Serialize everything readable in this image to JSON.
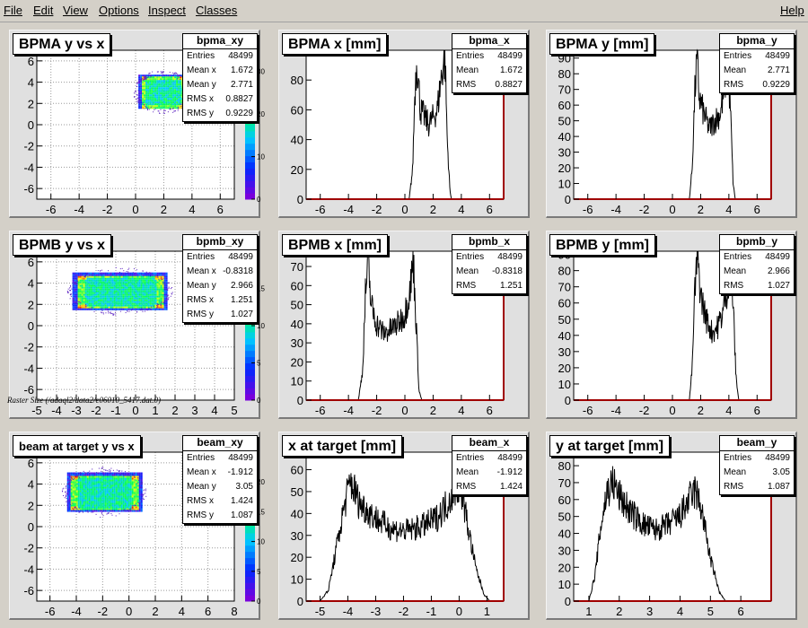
{
  "menu": {
    "left": [
      "File",
      "Edit",
      "View",
      "Options",
      "Inspect",
      "Classes"
    ],
    "right": "Help"
  },
  "raster_label": "Raster Size (/adaql2/data2/e06010_5417.dat.0)",
  "pads": [
    {
      "id": "p00",
      "title": "BPMA y vs x",
      "stats_name": "bpma_xy",
      "stats": [
        [
          "Entries",
          "48499"
        ],
        [
          "Mean x",
          "1.672"
        ],
        [
          "Mean y",
          "2.771"
        ],
        [
          "RMS x",
          "0.8827"
        ],
        [
          "RMS y",
          "0.9229"
        ]
      ],
      "chart_data": {
        "type": "heatmap",
        "x_ticks": [
          "-6",
          "-4",
          "-2",
          "0",
          "2",
          "4",
          "6"
        ],
        "y_ticks": [
          "-6",
          "-4",
          "-2",
          "0",
          "2",
          "4",
          "6"
        ],
        "z_ticks": [
          "0",
          "10",
          "20",
          "30"
        ],
        "xlim": [
          -7,
          7
        ],
        "ylim": [
          -7,
          7
        ],
        "zlim": [
          0,
          35
        ],
        "grid": true,
        "region": {
          "x": [
            0.2,
            3.6
          ],
          "y": [
            1.5,
            4.7
          ]
        }
      }
    },
    {
      "id": "p01",
      "title": "BPMA x [mm]",
      "stats_name": "bpma_x",
      "stats": [
        [
          "Entries",
          "48499"
        ],
        [
          "Mean",
          "1.672"
        ],
        [
          "RMS",
          "0.8827"
        ]
      ],
      "chart_data": {
        "type": "histogram",
        "x_ticks": [
          "-6",
          "-4",
          "-2",
          "0",
          "2",
          "4",
          "6"
        ],
        "y_ticks": [
          "0",
          "20",
          "40",
          "60",
          "80",
          "100"
        ],
        "xlim": [
          -7,
          7
        ],
        "ylim": [
          0,
          100
        ],
        "points": [
          [
            -7,
            0
          ],
          [
            0.3,
            0
          ],
          [
            0.55,
            20
          ],
          [
            0.7,
            70
          ],
          [
            0.85,
            95
          ],
          [
            0.95,
            80
          ],
          [
            1.1,
            60
          ],
          [
            1.4,
            55
          ],
          [
            1.7,
            50
          ],
          [
            2.0,
            55
          ],
          [
            2.3,
            60
          ],
          [
            2.55,
            80
          ],
          [
            2.7,
            90
          ],
          [
            2.85,
            95
          ],
          [
            3.0,
            40
          ],
          [
            3.2,
            5
          ],
          [
            3.3,
            0
          ],
          [
            7,
            0
          ]
        ]
      }
    },
    {
      "id": "p02",
      "title": "BPMA y [mm]",
      "stats_name": "bpma_y",
      "stats": [
        [
          "Entries",
          "48499"
        ],
        [
          "Mean",
          "2.771"
        ],
        [
          "RMS",
          "0.9229"
        ]
      ],
      "chart_data": {
        "type": "histogram",
        "x_ticks": [
          "-6",
          "-4",
          "-2",
          "0",
          "2",
          "4",
          "6"
        ],
        "y_ticks": [
          "0",
          "10",
          "20",
          "30",
          "40",
          "50",
          "60",
          "70",
          "80",
          "90"
        ],
        "xlim": [
          -7,
          7
        ],
        "ylim": [
          0,
          95
        ],
        "points": [
          [
            -7,
            0
          ],
          [
            1.2,
            0
          ],
          [
            1.4,
            20
          ],
          [
            1.6,
            70
          ],
          [
            1.75,
            90
          ],
          [
            1.9,
            65
          ],
          [
            2.2,
            55
          ],
          [
            2.6,
            45
          ],
          [
            3.0,
            50
          ],
          [
            3.4,
            55
          ],
          [
            3.7,
            70
          ],
          [
            3.9,
            85
          ],
          [
            4.1,
            60
          ],
          [
            4.3,
            10
          ],
          [
            4.45,
            0
          ],
          [
            7,
            0
          ]
        ]
      }
    },
    {
      "id": "p10",
      "title": "BPMB y vs x",
      "stats_name": "bpmb_xy",
      "stats": [
        [
          "Entries",
          "48499"
        ],
        [
          "Mean x",
          "-0.8318"
        ],
        [
          "Mean y",
          "2.966"
        ],
        [
          "RMS x",
          "1.251"
        ],
        [
          "RMS y",
          "1.027"
        ]
      ],
      "chart_data": {
        "type": "heatmap",
        "x_ticks": [
          "-5",
          "-4",
          "-3",
          "-2",
          "-1",
          "0",
          "1",
          "2",
          "3",
          "4",
          "5"
        ],
        "y_ticks": [
          "-6",
          "-4",
          "-2",
          "0",
          "2",
          "4",
          "6"
        ],
        "z_ticks": [
          "0",
          "5",
          "10",
          "15"
        ],
        "xlim": [
          -5,
          5
        ],
        "ylim": [
          -7,
          7
        ],
        "zlim": [
          0,
          20
        ],
        "grid": true,
        "region": {
          "x": [
            -3.2,
            1.6
          ],
          "y": [
            1.5,
            5.0
          ]
        }
      }
    },
    {
      "id": "p11",
      "title": "BPMB x [mm]",
      "stats_name": "bpmb_x",
      "stats": [
        [
          "Entries",
          "48499"
        ],
        [
          "Mean",
          "-0.8318"
        ],
        [
          "RMS",
          "1.251"
        ]
      ],
      "chart_data": {
        "type": "histogram",
        "x_ticks": [
          "-6",
          "-4",
          "-2",
          "0",
          "2",
          "4",
          "6"
        ],
        "y_ticks": [
          "0",
          "10",
          "20",
          "30",
          "40",
          "50",
          "60",
          "70"
        ],
        "xlim": [
          -7,
          7
        ],
        "ylim": [
          0,
          78
        ],
        "points": [
          [
            -7,
            0
          ],
          [
            -3.3,
            0
          ],
          [
            -3.0,
            15
          ],
          [
            -2.8,
            55
          ],
          [
            -2.6,
            73
          ],
          [
            -2.4,
            50
          ],
          [
            -2.0,
            40
          ],
          [
            -1.5,
            35
          ],
          [
            -1.0,
            37
          ],
          [
            -0.5,
            40
          ],
          [
            0.0,
            45
          ],
          [
            0.4,
            60
          ],
          [
            0.6,
            73
          ],
          [
            0.8,
            40
          ],
          [
            1.0,
            5
          ],
          [
            1.2,
            0
          ],
          [
            7,
            0
          ]
        ]
      }
    },
    {
      "id": "p12",
      "title": "BPMB y [mm]",
      "stats_name": "bpmb_y",
      "stats": [
        [
          "Entries",
          "48499"
        ],
        [
          "Mean",
          "2.966"
        ],
        [
          "RMS",
          "1.027"
        ]
      ],
      "chart_data": {
        "type": "histogram",
        "x_ticks": [
          "-6",
          "-4",
          "-2",
          "0",
          "2",
          "4",
          "6"
        ],
        "y_ticks": [
          "0",
          "10",
          "20",
          "30",
          "40",
          "50",
          "60",
          "70",
          "80",
          "90"
        ],
        "xlim": [
          -7,
          7
        ],
        "ylim": [
          0,
          92
        ],
        "points": [
          [
            -7,
            0
          ],
          [
            1.2,
            0
          ],
          [
            1.4,
            20
          ],
          [
            1.6,
            70
          ],
          [
            1.8,
            88
          ],
          [
            2.0,
            65
          ],
          [
            2.4,
            50
          ],
          [
            2.8,
            42
          ],
          [
            3.2,
            45
          ],
          [
            3.6,
            55
          ],
          [
            3.9,
            70
          ],
          [
            4.1,
            85
          ],
          [
            4.3,
            60
          ],
          [
            4.5,
            15
          ],
          [
            4.7,
            0
          ],
          [
            7,
            0
          ]
        ]
      }
    },
    {
      "id": "p20",
      "title": "beam at target y vs x",
      "stats_name": "beam_xy",
      "stats": [
        [
          "Entries",
          "48499"
        ],
        [
          "Mean x",
          "-1.912"
        ],
        [
          "Mean y",
          "3.05"
        ],
        [
          "RMS x",
          "1.424"
        ],
        [
          "RMS y",
          "1.087"
        ]
      ],
      "chart_data": {
        "type": "heatmap",
        "x_ticks": [
          "-6",
          "-4",
          "-2",
          "0",
          "2",
          "4",
          "6",
          "8"
        ],
        "y_ticks": [
          "-6",
          "-4",
          "-2",
          "0",
          "2",
          "4",
          "6"
        ],
        "z_ticks": [
          "0",
          "5",
          "10",
          "15",
          "20"
        ],
        "xlim": [
          -7,
          8
        ],
        "ylim": [
          -7,
          7
        ],
        "zlim": [
          0,
          25
        ],
        "grid": true,
        "region": {
          "x": [
            -4.7,
            0.9
          ],
          "y": [
            1.4,
            5.1
          ]
        }
      }
    },
    {
      "id": "p21",
      "title": "x at target [mm]",
      "stats_name": "beam_x",
      "stats": [
        [
          "Entries",
          "48499"
        ],
        [
          "Mean",
          "-1.912"
        ],
        [
          "RMS",
          "1.424"
        ]
      ],
      "chart_data": {
        "type": "histogram",
        "x_ticks": [
          "-5",
          "-4",
          "-3",
          "-2",
          "-1",
          "0",
          "1"
        ],
        "y_ticks": [
          "0",
          "10",
          "20",
          "30",
          "40",
          "50",
          "60"
        ],
        "xlim": [
          -5.5,
          1.6
        ],
        "ylim": [
          0,
          68
        ],
        "points": [
          [
            -5.5,
            0
          ],
          [
            -5.0,
            0
          ],
          [
            -4.7,
            5
          ],
          [
            -4.4,
            25
          ],
          [
            -4.1,
            45
          ],
          [
            -3.9,
            55
          ],
          [
            -3.6,
            45
          ],
          [
            -3.2,
            40
          ],
          [
            -2.8,
            36
          ],
          [
            -2.4,
            33
          ],
          [
            -2.0,
            32
          ],
          [
            -1.6,
            33
          ],
          [
            -1.2,
            35
          ],
          [
            -0.8,
            38
          ],
          [
            -0.4,
            45
          ],
          [
            -0.1,
            53
          ],
          [
            0.1,
            50
          ],
          [
            0.3,
            35
          ],
          [
            0.6,
            15
          ],
          [
            0.9,
            3
          ],
          [
            1.1,
            0
          ],
          [
            1.6,
            0
          ]
        ]
      }
    },
    {
      "id": "p22",
      "title": "y at target [mm]",
      "stats_name": "beam_y",
      "stats": [
        [
          "Entries",
          "48499"
        ],
        [
          "Mean",
          "3.05"
        ],
        [
          "RMS",
          "1.087"
        ]
      ],
      "chart_data": {
        "type": "histogram",
        "x_ticks": [
          "1",
          "2",
          "3",
          "4",
          "5",
          "6"
        ],
        "y_ticks": [
          "0",
          "10",
          "20",
          "30",
          "40",
          "50",
          "60",
          "70",
          "80"
        ],
        "xlim": [
          0.5,
          7
        ],
        "ylim": [
          0,
          88
        ],
        "points": [
          [
            0.5,
            0
          ],
          [
            1.0,
            0
          ],
          [
            1.2,
            15
          ],
          [
            1.4,
            45
          ],
          [
            1.6,
            65
          ],
          [
            1.8,
            70
          ],
          [
            2.0,
            62
          ],
          [
            2.4,
            52
          ],
          [
            2.8,
            45
          ],
          [
            3.2,
            42
          ],
          [
            3.6,
            45
          ],
          [
            4.0,
            50
          ],
          [
            4.3,
            60
          ],
          [
            4.5,
            65
          ],
          [
            4.7,
            55
          ],
          [
            5.0,
            25
          ],
          [
            5.3,
            5
          ],
          [
            5.5,
            0
          ],
          [
            7,
            0
          ]
        ]
      }
    }
  ]
}
